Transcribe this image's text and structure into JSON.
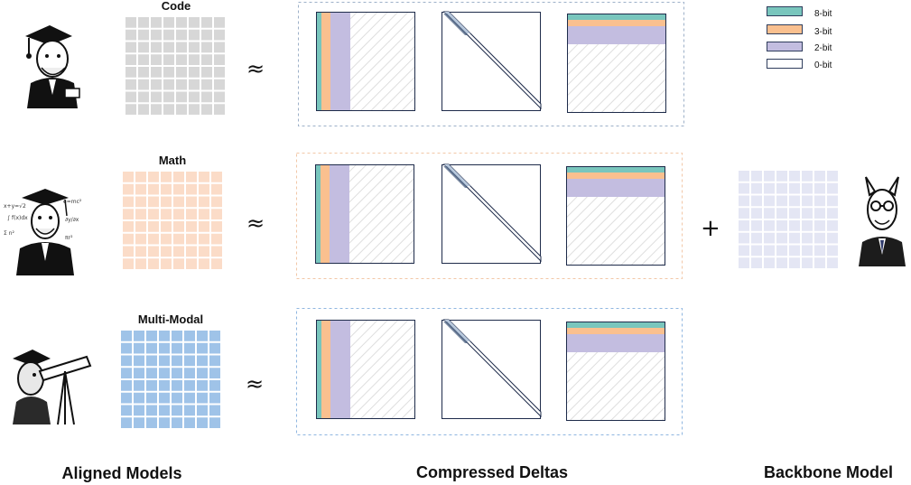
{
  "rows": [
    {
      "label": "Code",
      "grid_color": "#d7d7d7",
      "box_border": "#9db0c8"
    },
    {
      "label": "Math",
      "grid_color": "#fbdcc8",
      "box_border": "#f2c7a7"
    },
    {
      "label": "Multi-Modal",
      "grid_color": "#9fc3e8",
      "box_border": "#8fb6e0"
    }
  ],
  "approx_symbol": "≈",
  "plus_symbol": "+",
  "legend": [
    {
      "label": "8-bit",
      "color": "#79c6bd"
    },
    {
      "label": "3-bit",
      "color": "#fac08f"
    },
    {
      "label": "2-bit",
      "color": "#c3bde0"
    },
    {
      "label": "0-bit",
      "color": "#ffffff"
    }
  ],
  "backbone_grid_color": "#e4e6f4",
  "bottom_labels": {
    "aligned": "Aligned Models",
    "compressed": "Compressed Deltas",
    "backbone": "Backbone Model"
  }
}
